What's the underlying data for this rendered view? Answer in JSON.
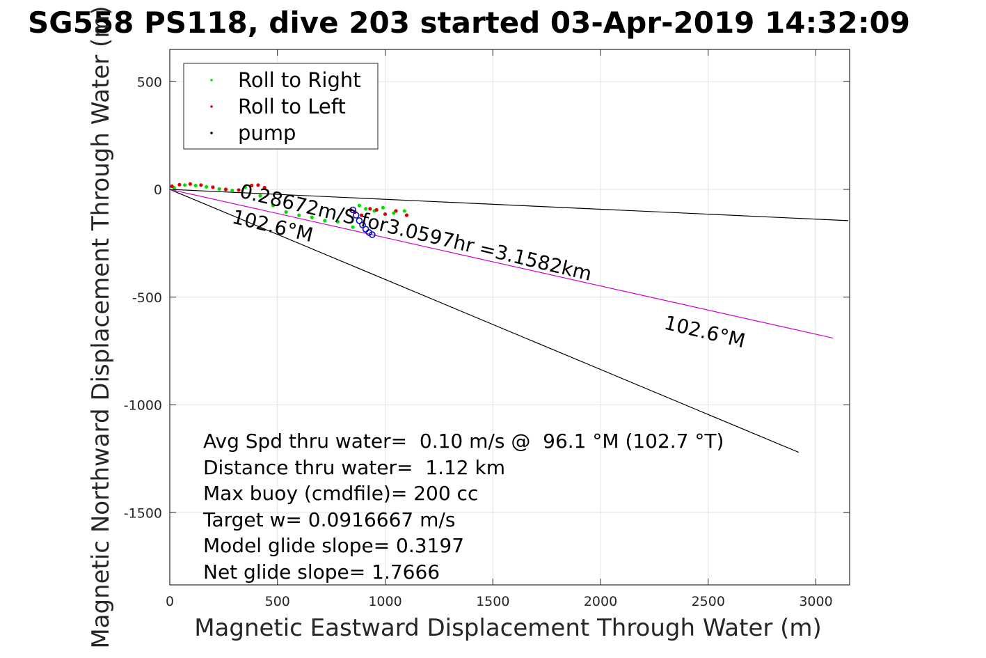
{
  "chart_data": {
    "type": "scatter",
    "title": "SG558 PS118, dive 203 started 03-Apr-2019 14:32:09",
    "xlabel": "Magnetic Eastward Displacement Through Water (m)",
    "ylabel": "Magnetic Northward Displacement Through Water (m)",
    "xlim": [
      0,
      3150
    ],
    "ylim": [
      -1830,
      650
    ],
    "xticks": [
      0,
      500,
      1000,
      1500,
      2000,
      2500,
      3000
    ],
    "yticks": [
      500,
      0,
      -500,
      -1000,
      -1500
    ],
    "xtick_labels": [
      "0",
      "500",
      "1000",
      "1500",
      "2000",
      "2500",
      "3000"
    ],
    "ytick_labels": [
      "500",
      "0",
      "-500",
      "-1000",
      "-1500"
    ],
    "grid": true,
    "legend": {
      "placement": "top-left",
      "entries": [
        {
          "label": "Roll to Right",
          "color": "#00e000"
        },
        {
          "label": "Roll to Left",
          "color": "#e00000"
        },
        {
          "label": "pump",
          "color": "#000000"
        }
      ]
    },
    "series": [
      {
        "name": "Roll to Right",
        "color": "#00e000",
        "x": [
          20,
          70,
          120,
          170,
          230,
          290,
          350,
          420,
          480,
          540,
          600,
          660,
          720,
          780,
          850,
          880,
          910,
          950,
          990,
          1040,
          1090
        ],
        "y": [
          8,
          20,
          18,
          12,
          2,
          -5,
          10,
          -30,
          -75,
          -105,
          -120,
          -130,
          -145,
          -150,
          -175,
          -75,
          -90,
          -100,
          -85,
          -110,
          -100
        ]
      },
      {
        "name": "Roll to Left",
        "color": "#e00000",
        "x": [
          10,
          45,
          95,
          145,
          200,
          260,
          320,
          380,
          410,
          440,
          840,
          860,
          890,
          930,
          960,
          1000,
          1050,
          1100
        ],
        "y": [
          15,
          22,
          25,
          20,
          10,
          0,
          -3,
          18,
          20,
          8,
          -95,
          -105,
          -120,
          -90,
          -95,
          -115,
          -100,
          -120
        ]
      },
      {
        "name": "pump",
        "x": [
          850,
          865,
          880,
          895,
          910,
          925,
          940
        ],
        "y": [
          -95,
          -120,
          -145,
          -165,
          -185,
          -200,
          -210
        ]
      }
    ],
    "lines": [
      {
        "x": [
          0,
          3150
        ],
        "y": [
          0,
          -145
        ],
        "color": "#000000"
      },
      {
        "x": [
          0,
          2920
        ],
        "y": [
          0,
          -1220
        ],
        "color": "#000000"
      },
      {
        "x": [
          0,
          3080
        ],
        "y": [
          0,
          -690
        ],
        "color": "#cc00cc"
      }
    ],
    "text_annotations": {
      "speed_line": "0.28672m/S for3.0597hr =3.1582km",
      "heading_near": "102.6°M",
      "heading_far": "102.6°M"
    },
    "stats": [
      "Avg Spd thru water=  0.10 m/s @  96.1 °M (102.7 °T)",
      "Distance thru water=  1.12 km",
      "Max buoy (cmdfile)= 200 cc",
      "Target w= 0.0916667 m/s",
      "Model glide slope= 0.3197",
      "Net glide slope= 1.7666"
    ]
  }
}
